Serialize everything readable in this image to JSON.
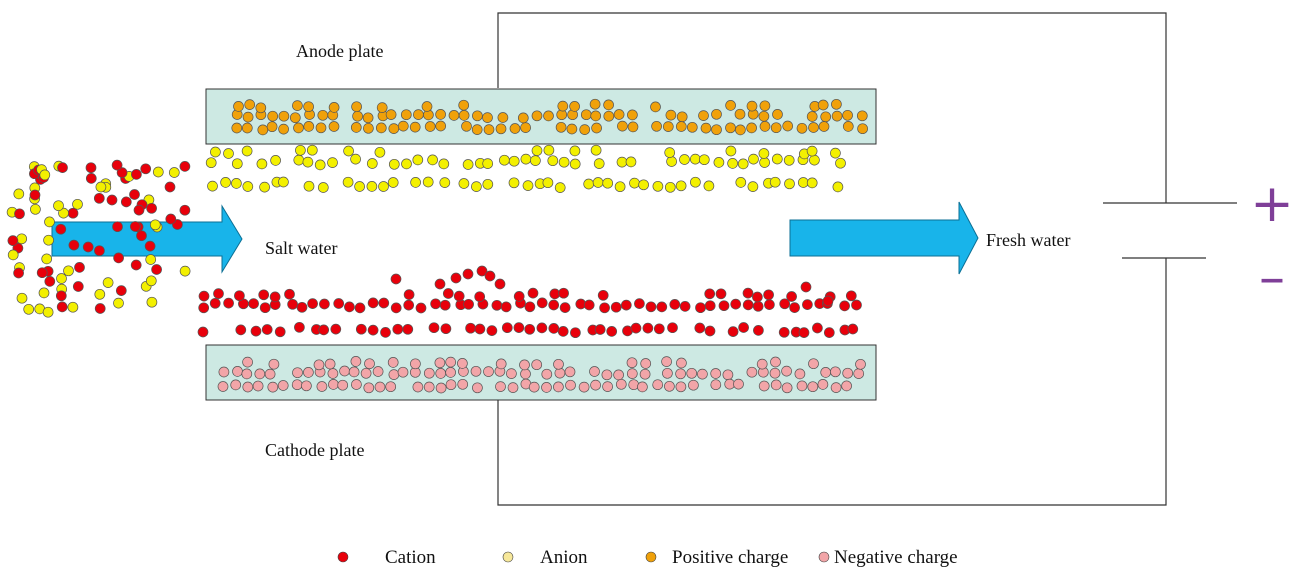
{
  "labels": {
    "anode": "Anode plate",
    "cathode": "Cathode plate",
    "salt_water": "Salt water",
    "fresh_water": "Fresh water",
    "plus": "+",
    "minus": "–"
  },
  "legend": [
    {
      "key": "cation",
      "label": "Cation",
      "color": "#e8000b"
    },
    {
      "key": "anion",
      "label": "Anion",
      "color": "#f3f000"
    },
    {
      "key": "positive",
      "label": "Positive charge",
      "color": "#f0a10a"
    },
    {
      "key": "negative",
      "label": "Negative charge",
      "color": "#f2a5a8"
    }
  ],
  "colors": {
    "cation": "#e8000b",
    "anion": "#f3f000",
    "positive": "#f0a10a",
    "negative": "#f2a5a8",
    "plate": "#cde9e3",
    "arrow": "#18b4ea",
    "terminal": "#7f3f98"
  }
}
